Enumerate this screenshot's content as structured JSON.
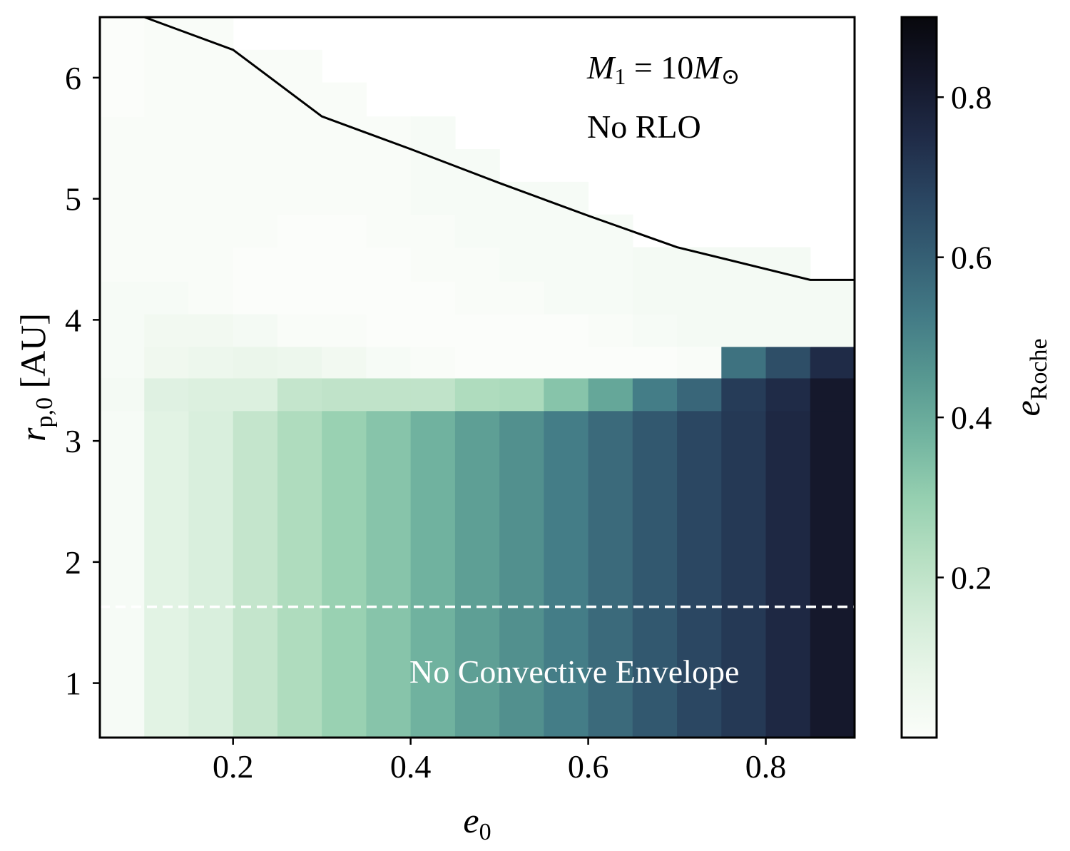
{
  "chart_data": {
    "type": "heatmap",
    "xlabel": {
      "main": "e",
      "sub": "0"
    },
    "ylabel": {
      "main": "r",
      "sub": "p,0",
      "unit": " [AU]"
    },
    "colorbar_label": {
      "main": "e",
      "sub": "Roche"
    },
    "xlim": [
      0.05,
      0.9
    ],
    "ylim": [
      0.55,
      6.5
    ],
    "clim": [
      0.0,
      0.9
    ],
    "x_ticks": [
      0.2,
      0.4,
      0.6,
      0.8
    ],
    "x_tick_labels": [
      "0.2",
      "0.4",
      "0.6",
      "0.8"
    ],
    "y_ticks": [
      1,
      2,
      3,
      4,
      5,
      6
    ],
    "y_tick_labels": [
      "1",
      "2",
      "3",
      "4",
      "5",
      "6"
    ],
    "colorbar_ticks": [
      0.2,
      0.4,
      0.6,
      0.8
    ],
    "colorbar_tick_labels": [
      "0.2",
      "0.4",
      "0.6",
      "0.8"
    ],
    "colormap": [
      "#fbfdfa",
      "#eaf6ea",
      "#d3ecd8",
      "#b6dfc2",
      "#95cfb0",
      "#72b4a0",
      "#579891",
      "#437b86",
      "#355f74",
      "#2a4561",
      "#1f2b47",
      "#14172a",
      "#08080d"
    ],
    "e_bins": [
      0.05,
      0.1,
      0.15,
      0.2,
      0.25,
      0.3,
      0.35,
      0.4,
      0.45,
      0.5,
      0.55,
      0.6,
      0.65,
      0.7,
      0.75,
      0.8,
      0.85,
      0.9
    ],
    "rp_bins": [
      0.55,
      3.25,
      3.52,
      3.78,
      4.05,
      4.32,
      4.6,
      4.87,
      5.14,
      5.41,
      5.68,
      5.96,
      6.23,
      6.5
    ],
    "e_roche": [
      [
        0.02,
        0.1,
        0.13,
        0.19,
        0.24,
        0.29,
        0.33,
        0.38,
        0.43,
        0.47,
        0.52,
        0.57,
        0.62,
        0.67,
        0.71,
        0.76,
        0.82
      ],
      [
        0.03,
        0.11,
        0.12,
        0.12,
        0.19,
        0.2,
        0.2,
        0.2,
        0.24,
        0.25,
        0.33,
        0.41,
        0.52,
        0.58,
        0.7,
        0.75,
        0.82
      ],
      [
        0.02,
        0.05,
        0.06,
        0.07,
        0.06,
        0.04,
        0.02,
        0.01,
        0.0,
        0.0,
        0.0,
        0.0,
        0.0,
        0.01,
        0.55,
        0.65,
        0.75
      ],
      [
        0.02,
        0.04,
        0.04,
        0.03,
        0.01,
        0.01,
        0.0,
        0.0,
        0.0,
        0.0,
        0.0,
        0.01,
        0.02,
        0.03,
        0.03,
        0.03,
        0.03
      ],
      [
        0.02,
        0.02,
        0.01,
        0.0,
        0.0,
        0.0,
        0.0,
        0.0,
        0.01,
        0.01,
        0.02,
        0.02,
        0.03,
        0.03,
        0.03,
        0.03,
        0.03
      ],
      [
        0.01,
        0.01,
        0.01,
        0.0,
        0.0,
        0.0,
        0.0,
        0.01,
        0.01,
        0.02,
        0.02,
        0.02,
        0.03,
        0.03,
        0.03,
        0.03,
        null
      ],
      [
        0.01,
        0.01,
        0.01,
        0.01,
        0.0,
        0.0,
        0.01,
        0.01,
        0.02,
        0.02,
        0.02,
        0.02,
        null,
        null,
        null,
        null,
        null
      ],
      [
        0.01,
        0.01,
        0.01,
        0.01,
        0.01,
        0.01,
        0.01,
        0.02,
        0.02,
        0.02,
        0.02,
        null,
        null,
        null,
        null,
        null,
        null
      ],
      [
        0.01,
        0.01,
        0.01,
        0.01,
        0.01,
        0.01,
        0.01,
        0.02,
        0.02,
        null,
        null,
        null,
        null,
        null,
        null,
        null,
        null
      ],
      [
        0.01,
        0.01,
        0.01,
        0.01,
        0.01,
        0.01,
        0.01,
        0.02,
        null,
        null,
        null,
        null,
        null,
        null,
        null,
        null,
        null
      ],
      [
        0.0,
        0.01,
        0.01,
        0.01,
        0.01,
        0.01,
        null,
        null,
        null,
        null,
        null,
        null,
        null,
        null,
        null,
        null,
        null
      ],
      [
        0.0,
        0.01,
        0.01,
        0.01,
        0.01,
        null,
        null,
        null,
        null,
        null,
        null,
        null,
        null,
        null,
        null,
        null,
        null
      ],
      [
        0.0,
        0.01,
        0.01,
        null,
        null,
        null,
        null,
        null,
        null,
        null,
        null,
        null,
        null,
        null,
        null,
        null,
        null
      ]
    ],
    "rlo_boundary": {
      "e": [
        0.1,
        0.2,
        0.3,
        0.4,
        0.5,
        0.6,
        0.7,
        0.85,
        0.9
      ],
      "rp": [
        6.5,
        6.23,
        5.68,
        5.41,
        5.13,
        4.86,
        4.6,
        4.33,
        4.33
      ]
    },
    "convective_line_rp": 1.63,
    "annotations": {
      "mass": {
        "lhs": "M",
        "lhs_sub": "1",
        "eq": " = 10",
        "rhs": "M",
        "rhs_sub": "⊙"
      },
      "no_rlo": "No RLO",
      "no_convective": "No Convective Envelope"
    }
  }
}
